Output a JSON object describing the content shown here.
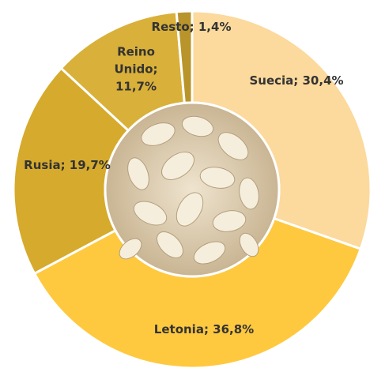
{
  "chart_data": {
    "type": "donut",
    "values": [
      30.4,
      36.8,
      19.7,
      11.7,
      1.4
    ],
    "value_labels": [
      "Suecia; 30,4%",
      "Letonia; 36,8%",
      "Rusia; 19,7%",
      "Reino Unido; 11,7%",
      "Resto; 1,4%"
    ],
    "colors": [
      "#fcd99c",
      "#fec93f",
      "#d6aa2c",
      "#d9b039",
      "#b8942a"
    ]
  }
}
